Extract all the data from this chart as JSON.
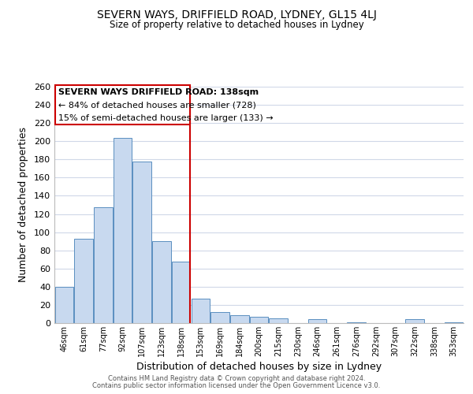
{
  "title": "SEVERN WAYS, DRIFFIELD ROAD, LYDNEY, GL15 4LJ",
  "subtitle": "Size of property relative to detached houses in Lydney",
  "xlabel": "Distribution of detached houses by size in Lydney",
  "ylabel": "Number of detached properties",
  "footer_line1": "Contains HM Land Registry data © Crown copyright and database right 2024.",
  "footer_line2": "Contains public sector information licensed under the Open Government Licence v3.0.",
  "bar_labels": [
    "46sqm",
    "61sqm",
    "77sqm",
    "92sqm",
    "107sqm",
    "123sqm",
    "138sqm",
    "153sqm",
    "169sqm",
    "184sqm",
    "200sqm",
    "215sqm",
    "230sqm",
    "246sqm",
    "261sqm",
    "276sqm",
    "292sqm",
    "307sqm",
    "322sqm",
    "338sqm",
    "353sqm"
  ],
  "bar_values": [
    40,
    93,
    127,
    204,
    178,
    90,
    68,
    27,
    12,
    9,
    7,
    5,
    0,
    4,
    0,
    1,
    0,
    0,
    4,
    0,
    1
  ],
  "bar_color": "#c8d9ef",
  "bar_edge_color": "#5a8fc0",
  "vline_x_index": 6,
  "vline_color": "#cc0000",
  "annotation_title": "SEVERN WAYS DRIFFIELD ROAD: 138sqm",
  "annotation_line2": "← 84% of detached houses are smaller (728)",
  "annotation_line3": "15% of semi-detached houses are larger (133) →",
  "annotation_box_edge": "#cc0000",
  "annotation_box_bg": "white",
  "ylim": [
    0,
    260
  ],
  "yticks": [
    0,
    20,
    40,
    60,
    80,
    100,
    120,
    140,
    160,
    180,
    200,
    220,
    240,
    260
  ],
  "background_color": "#ffffff",
  "grid_color": "#d0d8e8"
}
